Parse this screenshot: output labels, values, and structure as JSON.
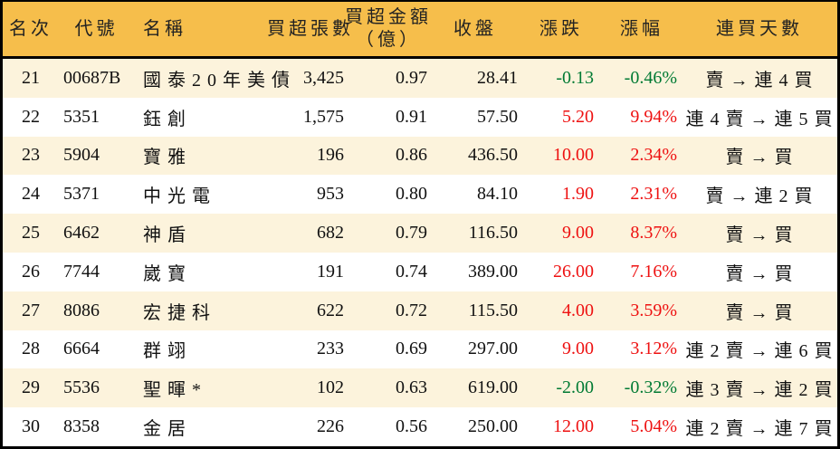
{
  "colors": {
    "header_bg": "#F6BE4B",
    "row_alt_bg": "#FCF3DC",
    "row_bg": "#FFFFFF",
    "border": "#000000",
    "text": "#111111",
    "up_red": "#EE1111",
    "down_green": "#007A33"
  },
  "chart_data": {
    "type": "table",
    "title": "",
    "columns": [
      {
        "key": "rank",
        "label": "名次"
      },
      {
        "key": "code",
        "label": "代號"
      },
      {
        "key": "name",
        "label": "名稱"
      },
      {
        "key": "volume",
        "label": "買超張數"
      },
      {
        "key": "amount",
        "label": "買超金額",
        "label2": "（億）"
      },
      {
        "key": "close",
        "label": "收盤"
      },
      {
        "key": "change",
        "label": "漲跌"
      },
      {
        "key": "change_pct",
        "label": "漲幅"
      },
      {
        "key": "streak",
        "label": "連買天數"
      }
    ],
    "rows": [
      {
        "rank": "21",
        "code": "00687B",
        "name": "國泰20年美債",
        "volume": "3,425",
        "amount": "0.97",
        "close": "28.41",
        "change": "-0.13",
        "change_pct": "-0.46%",
        "streak": "賣 → 連 4 買"
      },
      {
        "rank": "22",
        "code": "5351",
        "name": "鈺創",
        "volume": "1,575",
        "amount": "0.91",
        "close": "57.50",
        "change": "5.20",
        "change_pct": "9.94%",
        "streak": "連 4 賣 → 連 5 買"
      },
      {
        "rank": "23",
        "code": "5904",
        "name": "寶雅",
        "volume": "196",
        "amount": "0.86",
        "close": "436.50",
        "change": "10.00",
        "change_pct": "2.34%",
        "streak": "賣 → 買"
      },
      {
        "rank": "24",
        "code": "5371",
        "name": "中光電",
        "volume": "953",
        "amount": "0.80",
        "close": "84.10",
        "change": "1.90",
        "change_pct": "2.31%",
        "streak": "賣 → 連 2 買"
      },
      {
        "rank": "25",
        "code": "6462",
        "name": "神盾",
        "volume": "682",
        "amount": "0.79",
        "close": "116.50",
        "change": "9.00",
        "change_pct": "8.37%",
        "streak": "賣 → 買"
      },
      {
        "rank": "26",
        "code": "7744",
        "name": "崴寶",
        "volume": "191",
        "amount": "0.74",
        "close": "389.00",
        "change": "26.00",
        "change_pct": "7.16%",
        "streak": "賣 → 買"
      },
      {
        "rank": "27",
        "code": "8086",
        "name": "宏捷科",
        "volume": "622",
        "amount": "0.72",
        "close": "115.50",
        "change": "4.00",
        "change_pct": "3.59%",
        "streak": "賣 → 買"
      },
      {
        "rank": "28",
        "code": "6664",
        "name": "群翊",
        "volume": "233",
        "amount": "0.69",
        "close": "297.00",
        "change": "9.00",
        "change_pct": "3.12%",
        "streak": "連 2 賣 → 連 6 買"
      },
      {
        "rank": "29",
        "code": "5536",
        "name": "聖暉*",
        "volume": "102",
        "amount": "0.63",
        "close": "619.00",
        "change": "-2.00",
        "change_pct": "-0.32%",
        "streak": "連 3 賣 → 連 2 買"
      },
      {
        "rank": "30",
        "code": "8358",
        "name": "金居",
        "volume": "226",
        "amount": "0.56",
        "close": "250.00",
        "change": "12.00",
        "change_pct": "5.04%",
        "streak": "連 2 賣 → 連 7 買"
      }
    ]
  }
}
